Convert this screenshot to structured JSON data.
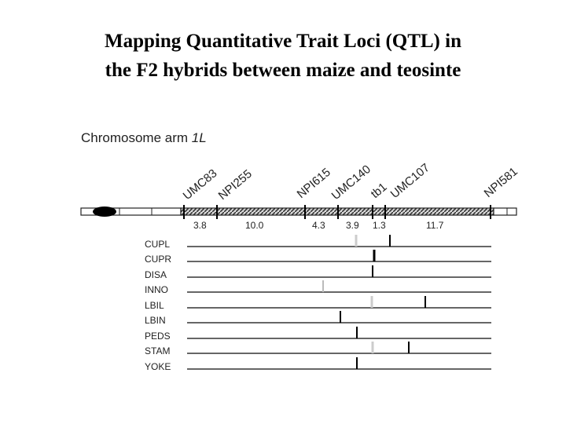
{
  "title_lines": [
    "Mapping Quantitative Trait Loci (QTL) in",
    "the F2 hybrids between maize and teosinte"
  ],
  "subtitle": {
    "prefix": "Chromosome arm",
    "arm": "1L"
  },
  "markers": [
    "UMC83",
    "NPI255",
    "NPI615",
    "UMC140",
    "tb1",
    "UMC107",
    "NPI581"
  ],
  "intervals": [
    "3.8",
    "10.0",
    "4.3",
    "3.9",
    "1.3",
    "11.7"
  ],
  "traits": [
    "CUPL",
    "CUPR",
    "DISA",
    "INNO",
    "LBIL",
    "LBIN",
    "PEDS",
    "STAM",
    "YOKE"
  ]
}
